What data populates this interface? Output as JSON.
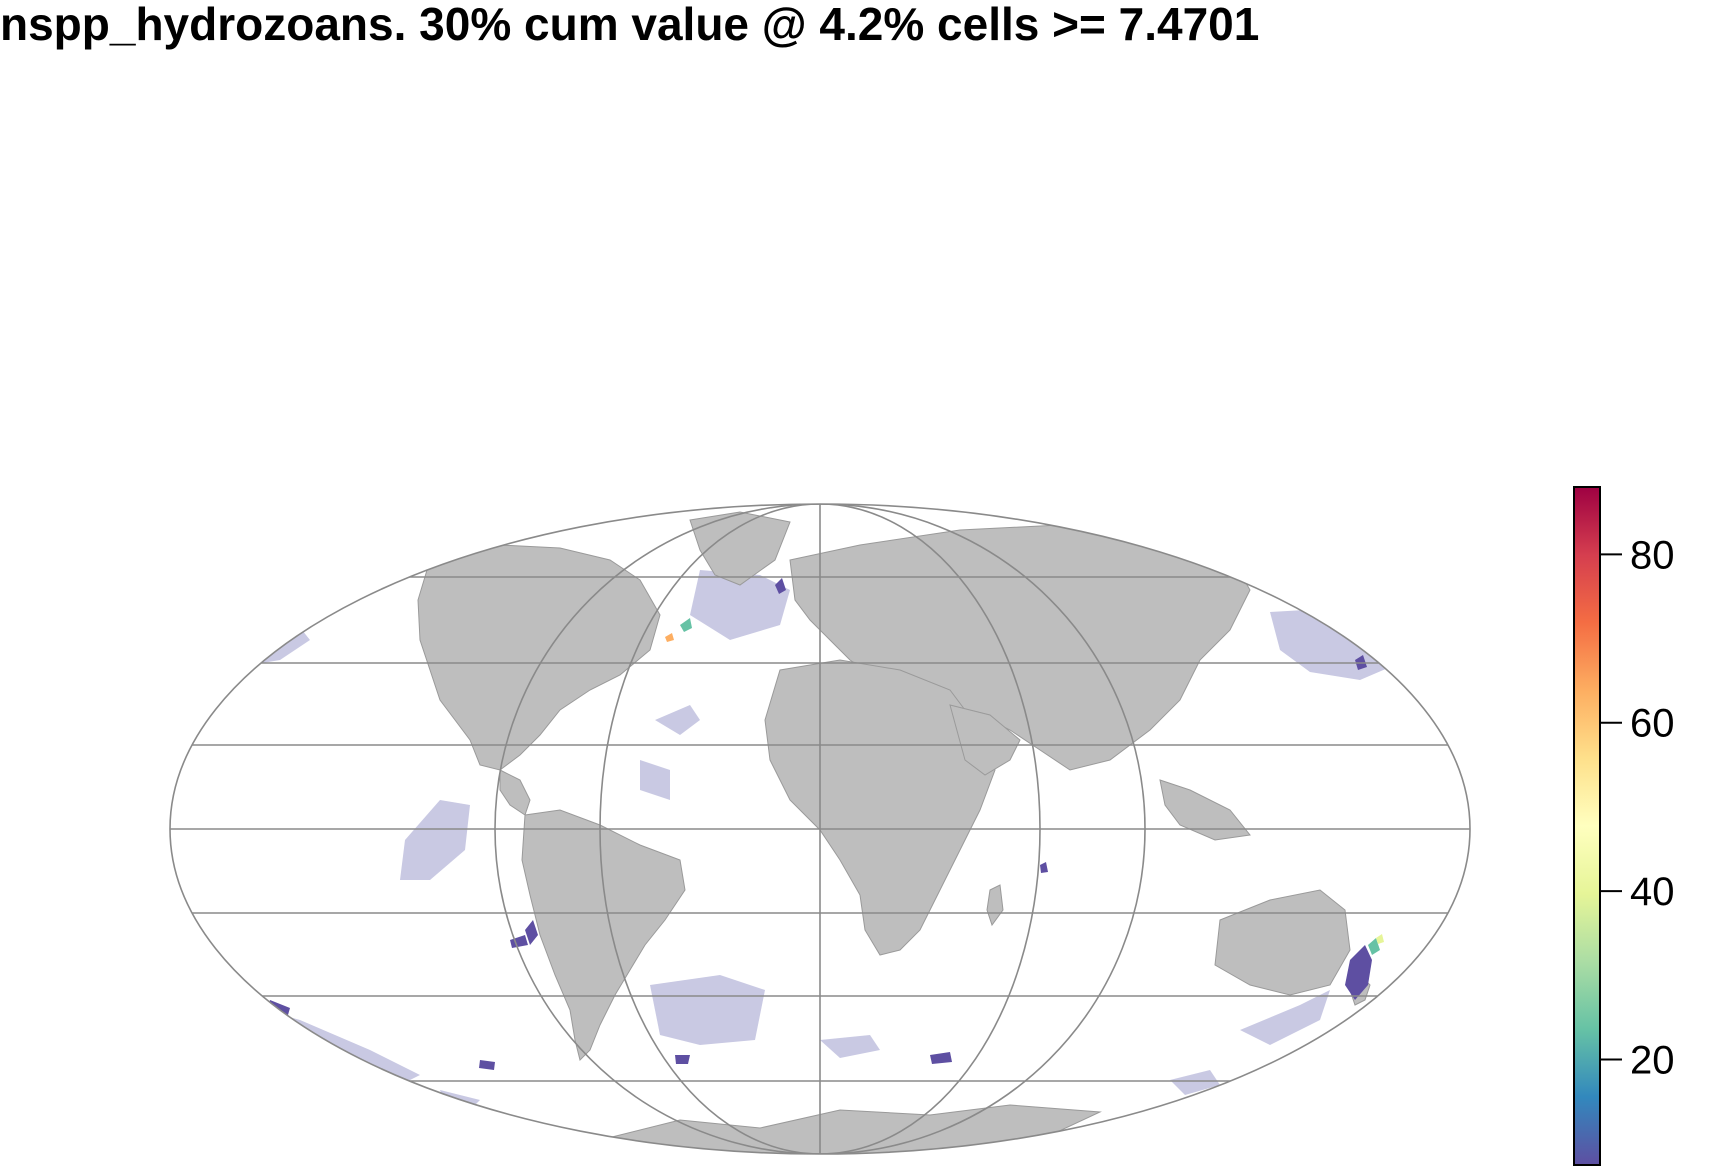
{
  "title": "nspp_hydrozoans. 30% cum value @ 4.2% cells >= 7.4701",
  "colors": {
    "land": "#bebebe",
    "land_border": "#9a9a9a",
    "graticule": "#8a8a8a",
    "below_threshold": "#c9c9e3",
    "scale": [
      "#5e4fa2",
      "#3288bd",
      "#66c2a5",
      "#abdda4",
      "#e6f598",
      "#ffffbf",
      "#fee08b",
      "#fdae61",
      "#f46d43",
      "#d53e4f",
      "#9e0142"
    ]
  },
  "legend": {
    "min": 7.47,
    "max": 88,
    "ticks": [
      {
        "value": 20,
        "label": "20"
      },
      {
        "value": 40,
        "label": "40"
      },
      {
        "value": 60,
        "label": "60"
      },
      {
        "value": 80,
        "label": "80"
      }
    ]
  },
  "projection": "Mollweide"
}
